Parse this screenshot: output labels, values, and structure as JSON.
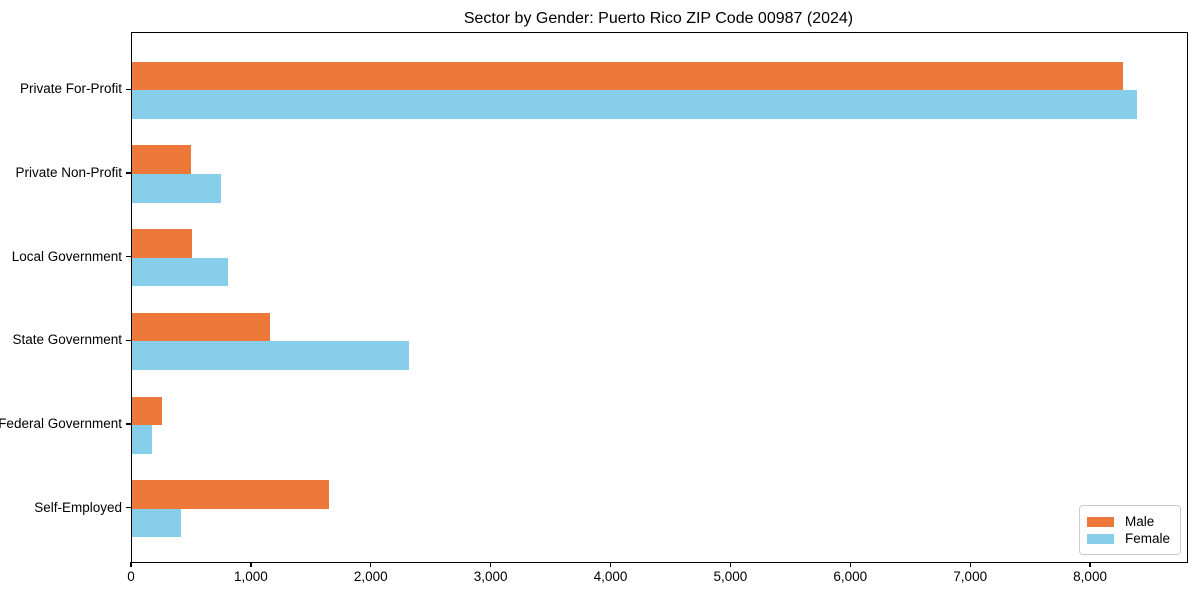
{
  "chart_data": {
    "type": "bar",
    "orientation": "horizontal",
    "title": "Sector by Gender: Puerto Rico ZIP Code 00987 (2024)",
    "categories": [
      "Private For-Profit",
      "Private Non-Profit",
      "Local Government",
      "State Government",
      "Federal Government",
      "Self-Employed"
    ],
    "series": [
      {
        "name": "Male",
        "color": "#EC7839",
        "values": [
          8270,
          490,
          500,
          1150,
          250,
          1640
        ]
      },
      {
        "name": "Female",
        "color": "#87CEEB",
        "values": [
          8380,
          740,
          800,
          2310,
          165,
          405
        ]
      }
    ],
    "xlabel": "",
    "ylabel": "",
    "xlim": [
      0,
      8800
    ],
    "xticks": [
      0,
      1000,
      2000,
      3000,
      4000,
      5000,
      6000,
      7000,
      8000
    ],
    "xtick_labels": [
      "0",
      "1,000",
      "2,000",
      "3,000",
      "4,000",
      "5,000",
      "6,000",
      "7,000",
      "8,000"
    ],
    "grid": false,
    "legend_position": "lower right",
    "axis_color": "#000000",
    "background_color": "#ffffff"
  }
}
